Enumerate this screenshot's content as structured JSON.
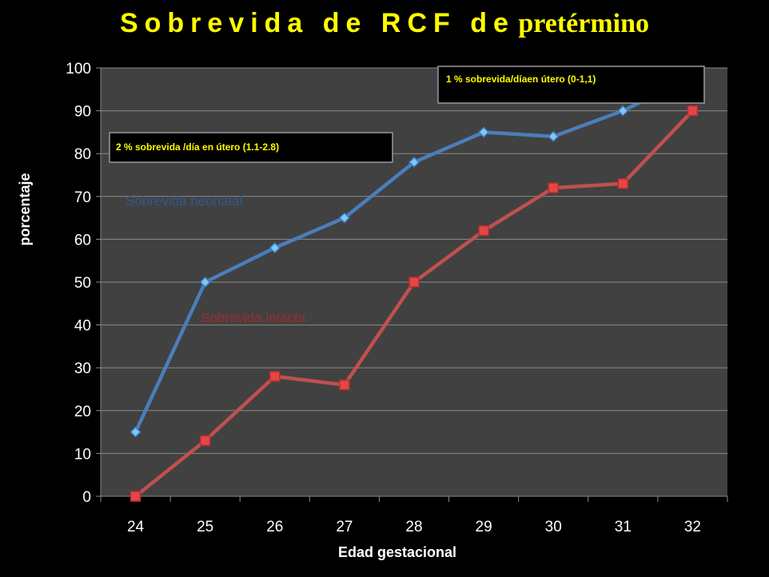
{
  "title": {
    "main": "Sobrevida de RCF de",
    "last": "pretérmino"
  },
  "colors": {
    "background": "#000000",
    "plot_area": "#414141",
    "neonatal": "#4a7ebb",
    "neonatal_marker": "#7fc7f2",
    "intacta": "#c0504d",
    "intacta_marker": "#e64545",
    "annotation_text": "#ffff00"
  },
  "chart_data": {
    "type": "line",
    "xlabel": "Edad gestacional",
    "ylabel": "porcentaje",
    "categories": [
      "24",
      "25",
      "26",
      "27",
      "28",
      "29",
      "30",
      "31",
      "32"
    ],
    "ylim": [
      0,
      100
    ],
    "yticks": [
      0,
      10,
      20,
      30,
      40,
      50,
      60,
      70,
      80,
      90,
      100
    ],
    "grid": true,
    "series": [
      {
        "name": "Sobrevida neonatal",
        "marker": "diamond",
        "values": [
          15,
          50,
          58,
          65,
          78,
          85,
          84,
          90,
          98
        ]
      },
      {
        "name": "Sobrevida intacta",
        "marker": "square",
        "values": [
          0,
          13,
          28,
          26,
          50,
          62,
          72,
          73,
          90
        ]
      }
    ],
    "annotations": [
      {
        "text": "2 % sobrevida /día en útero (1.1-2.8)"
      },
      {
        "text": "1 % sobrevida/díaen útero (0-1,1)"
      }
    ]
  }
}
